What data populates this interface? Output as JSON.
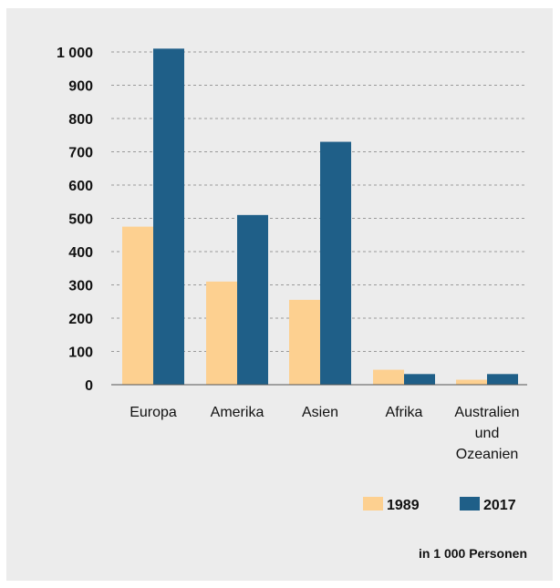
{
  "chart_data": {
    "type": "bar",
    "categories": [
      "Europa",
      "Amerika",
      "Asien",
      "Afrika",
      "Australien und Ozeanien"
    ],
    "category_lines": [
      [
        "Europa"
      ],
      [
        "Amerika"
      ],
      [
        "Asien"
      ],
      [
        "Afrika"
      ],
      [
        "Australien",
        "und",
        "Ozeanien"
      ]
    ],
    "series": [
      {
        "name": "1989",
        "color": "#fdd090",
        "values": [
          475,
          310,
          255,
          45,
          15
        ]
      },
      {
        "name": "2017",
        "color": "#1f5f88",
        "values": [
          1010,
          510,
          730,
          32,
          32
        ]
      }
    ],
    "yticks": [
      0,
      100,
      200,
      300,
      400,
      500,
      600,
      700,
      800,
      900,
      1000
    ],
    "ytick_labels": [
      "0",
      "100",
      "200",
      "300",
      "400",
      "500",
      "600",
      "700",
      "800",
      "900",
      "1 000"
    ],
    "ylim": [
      0,
      1000
    ],
    "grid": true,
    "legend": "bottom-right",
    "unit_label": "in 1 000 Personen"
  }
}
